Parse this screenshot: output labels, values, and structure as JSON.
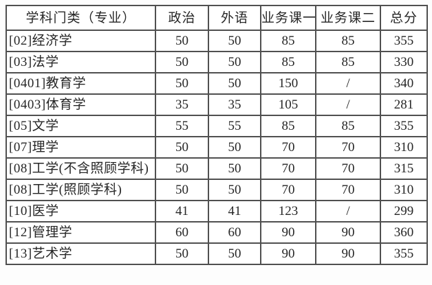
{
  "table": {
    "headers": [
      "学科门类（专业）",
      "政治",
      "外语",
      "业务课一",
      "业务课二",
      "总分"
    ],
    "rows": [
      [
        "[02]经济学",
        "50",
        "50",
        "85",
        "85",
        "355"
      ],
      [
        "[03]法学",
        "50",
        "50",
        "85",
        "85",
        "330"
      ],
      [
        "[0401]教育学",
        "50",
        "50",
        "150",
        "/",
        "340"
      ],
      [
        "[0403]体育学",
        "35",
        "35",
        "105",
        "/",
        "281"
      ],
      [
        "[05]文学",
        "55",
        "55",
        "85",
        "85",
        "355"
      ],
      [
        "[07]理学",
        "50",
        "50",
        "70",
        "70",
        "310"
      ],
      [
        "[08]工学(不含照顾学科)",
        "50",
        "50",
        "70",
        "70",
        "315"
      ],
      [
        "[08]工学(照顾学科)",
        "50",
        "50",
        "70",
        "70",
        "310"
      ],
      [
        "[10]医学",
        "41",
        "41",
        "123",
        "/",
        "299"
      ],
      [
        "[12]管理学",
        "60",
        "60",
        "90",
        "90",
        "360"
      ],
      [
        "[13]艺术学",
        "50",
        "50",
        "90",
        "90",
        "355"
      ]
    ],
    "colors": {
      "border": "#4f4f4f",
      "text": "#262626",
      "background": "#ffffff"
    }
  }
}
